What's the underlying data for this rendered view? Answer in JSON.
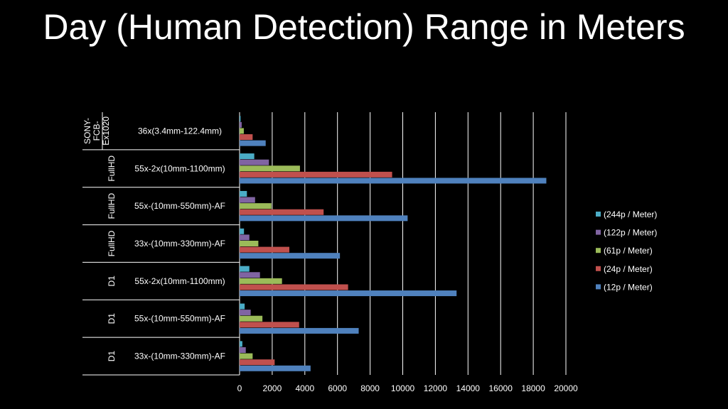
{
  "chart_data": {
    "type": "bar",
    "orientation": "horizontal",
    "title": "Day (Human Detection) Range in Meters",
    "xlim": [
      0,
      20000
    ],
    "xticks": [
      0,
      2000,
      4000,
      6000,
      8000,
      10000,
      12000,
      14000,
      16000,
      18000,
      20000
    ],
    "grid": true,
    "legend_position": "right",
    "categories": [
      {
        "group": "SONY-FCB-Ex1020",
        "label": "36x(3.4mm-122.4mm)"
      },
      {
        "group": "FullHD",
        "label": "55x-2x(10mm-1100mm)"
      },
      {
        "group": "FullHD",
        "label": "55x-(10mm-550mm)-AF"
      },
      {
        "group": "FullHD",
        "label": "33x-(10mm-330mm)-AF"
      },
      {
        "group": "D1",
        "label": "55x-2x(10mm-1100mm)"
      },
      {
        "group": "D1",
        "label": "55x-(10mm-550mm)-AF"
      },
      {
        "group": "D1",
        "label": "33x-(10mm-330mm)-AF"
      }
    ],
    "series": [
      {
        "name": "(244p / Meter)",
        "color": "#4bacc6",
        "values": [
          60,
          900,
          450,
          270,
          600,
          310,
          170
        ]
      },
      {
        "name": "(122p / Meter)",
        "color": "#8064a2",
        "values": [
          130,
          1800,
          950,
          600,
          1250,
          680,
          380
        ]
      },
      {
        "name": "(61p / Meter)",
        "color": "#9bbb59",
        "values": [
          260,
          3700,
          1950,
          1150,
          2600,
          1400,
          800
        ]
      },
      {
        "name": "(24p / Meter)",
        "color": "#c0504d",
        "values": [
          800,
          9350,
          5150,
          3050,
          6650,
          3650,
          2150
        ]
      },
      {
        "name": "(12p / Meter)",
        "color": "#4f81bd",
        "values": [
          1600,
          18800,
          10300,
          6150,
          13300,
          7300,
          4350
        ]
      }
    ]
  }
}
